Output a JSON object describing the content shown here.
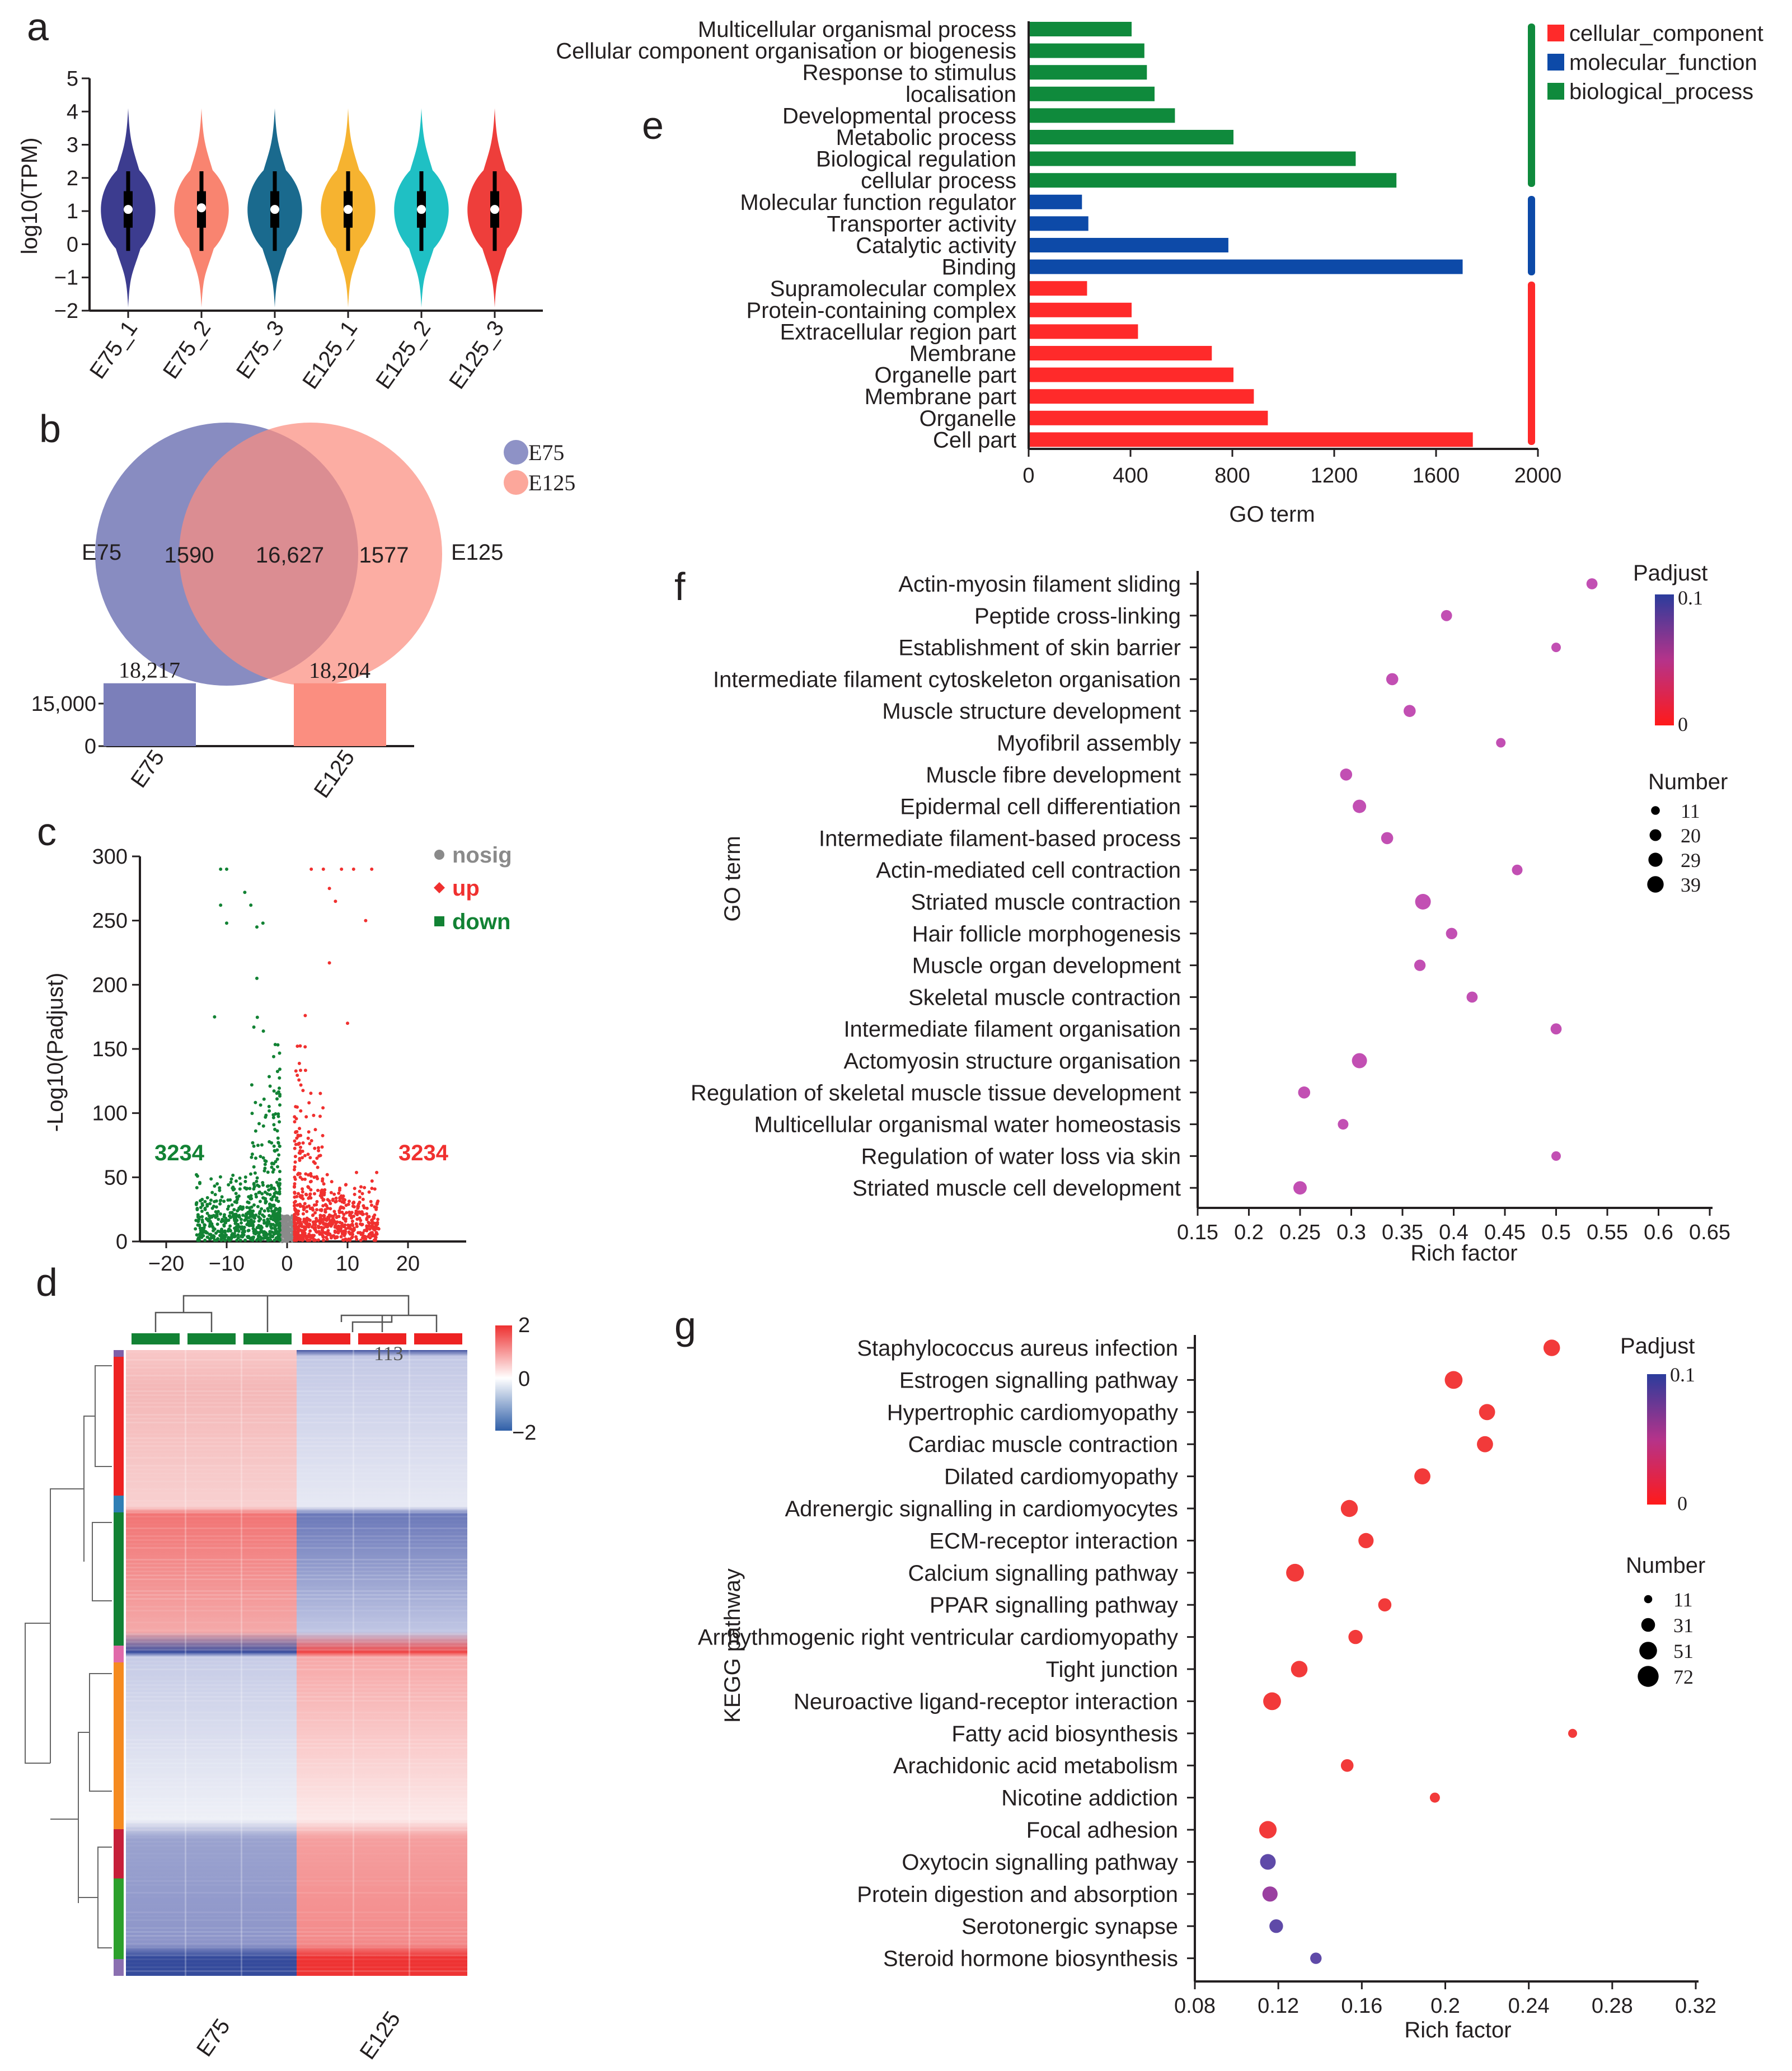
{
  "panels": {
    "a": "a",
    "b": "b",
    "c": "c",
    "d": "d",
    "e": "e",
    "f": "f",
    "g": "g"
  },
  "colors": {
    "component": "#ff2a2a",
    "function": "#0d4aa8",
    "process": "#0f8a3c",
    "up": "#f0302f",
    "down": "#128234",
    "nosig": "#8a8a8a",
    "e75": "#7b7fba",
    "e125": "#fb8e80"
  },
  "chart_data": [
    {
      "id": "a",
      "type": "violin",
      "ylabel": "log10(TPM)",
      "ylim": [
        -2,
        5
      ],
      "yticks": [
        "5",
        "4",
        "3",
        "2",
        "1",
        "0",
        "−1",
        "−2"
      ],
      "categories": [
        "E75_1",
        "E75_2",
        "E75_3",
        "E125_1",
        "E125_2",
        "E125_3"
      ],
      "colors": [
        "#3c3c8f",
        "#f98470",
        "#1a6a8e",
        "#f6b330",
        "#1fc0c4",
        "#ee3e3b"
      ],
      "medians": [
        1.05,
        1.1,
        1.05,
        1.05,
        1.05,
        1.05
      ]
    },
    {
      "id": "b",
      "type": "venn",
      "sets": [
        "E75",
        "E125"
      ],
      "legend": [
        "E75",
        "E125"
      ],
      "only_left": "1590",
      "overlap": "16,627",
      "only_right": "1577",
      "bar_values": [
        18217,
        18204
      ],
      "bar_labels": [
        "18,217",
        "18,204"
      ],
      "bar_categories": [
        "E75",
        "E125"
      ],
      "bar_ytick": "15,000",
      "bar_zero": "0"
    },
    {
      "id": "c",
      "type": "scatter",
      "ylabel": "-Log10(Padjust)",
      "xlim": [
        -25,
        30
      ],
      "ylim": [
        0,
        300
      ],
      "xticks": [
        "−20",
        "−10",
        "0",
        "10",
        "20"
      ],
      "yticks": [
        "300",
        "250",
        "200",
        "150",
        "100",
        "50",
        "0"
      ],
      "legend": [
        "nosig",
        "up",
        "down"
      ],
      "down_count": "3234",
      "up_count": "3234"
    },
    {
      "id": "d",
      "type": "heatmap",
      "scale_labels": [
        "2",
        "0",
        "−2"
      ],
      "note": "113",
      "groups": [
        "E75",
        "E125"
      ]
    },
    {
      "id": "e",
      "type": "bar",
      "orientation": "horizontal",
      "xlabel": "GO term",
      "xlim": [
        0,
        2000
      ],
      "xticks": [
        "0",
        "400",
        "800",
        "1200",
        "1600",
        "2000"
      ],
      "legend": [
        "cellular_component",
        "molecular_function",
        "biological_process"
      ],
      "categories": [
        "Multicellular organismal process",
        "Cellular component organisation or biogenesis",
        "Response to stimulus",
        "localisation",
        "Developmental process",
        "Metabolic process",
        "Biological regulation",
        "cellular process",
        "Molecular function regulator",
        "Transporter activity",
        "Catalytic activity",
        "Binding",
        "Supramolecular complex",
        "Protein-containing complex",
        "Extracellular region part",
        "Membrane",
        "Organelle part",
        "Membrane part",
        "Organelle",
        "Cell part"
      ],
      "values": [
        400,
        450,
        460,
        490,
        570,
        800,
        1280,
        1440,
        205,
        230,
        780,
        1700,
        225,
        400,
        425,
        715,
        800,
        880,
        935,
        1740
      ],
      "groups": [
        "biological_process",
        "biological_process",
        "biological_process",
        "biological_process",
        "biological_process",
        "biological_process",
        "biological_process",
        "biological_process",
        "molecular_function",
        "molecular_function",
        "molecular_function",
        "molecular_function",
        "cellular_component",
        "cellular_component",
        "cellular_component",
        "cellular_component",
        "cellular_component",
        "cellular_component",
        "cellular_component",
        "cellular_component"
      ]
    },
    {
      "id": "f",
      "type": "scatter",
      "xlabel": "Rich factor",
      "ylabel": "GO term",
      "xlim": [
        0.15,
        0.65
      ],
      "xticks": [
        "0.15",
        "0.2",
        "0.25",
        "0.3",
        "0.35",
        "0.4",
        "0.45",
        "0.5",
        "0.55",
        "0.6",
        "0.65"
      ],
      "color_title": "Padjust",
      "color_labels": [
        "0.1",
        "0"
      ],
      "size_title": "Number",
      "size_labels": [
        "11",
        "20",
        "29",
        "39"
      ],
      "terms": [
        "Actin-myosin filament sliding",
        "Peptide cross-linking",
        "Establishment of skin barrier",
        "Intermediate filament cytoskeleton organisation",
        "Muscle structure development",
        "Myofibril assembly",
        "Muscle fibre development",
        "Epidermal cell differentiation",
        "Intermediate filament-based process",
        "Actin-mediated cell contraction",
        "Striated muscle contraction",
        "Hair follicle morphogenesis",
        "Muscle organ development",
        "Skeletal muscle contraction",
        "Intermediate filament organisation",
        "Actomyosin structure organisation",
        "Regulation of skeletal muscle tissue development",
        "Multicellular organismal water homeostasis",
        "Regulation of water loss via skin",
        "Striated muscle cell development"
      ],
      "x": [
        0.535,
        0.393,
        0.5,
        0.34,
        0.357,
        0.446,
        0.295,
        0.308,
        0.335,
        0.462,
        0.37,
        0.398,
        0.367,
        0.418,
        0.5,
        0.308,
        0.254,
        0.292,
        0.5,
        0.25
      ],
      "number": [
        15,
        15,
        11,
        18,
        18,
        11,
        18,
        22,
        18,
        14,
        30,
        16,
        16,
        15,
        15,
        28,
        18,
        14,
        11,
        22
      ]
    },
    {
      "id": "g",
      "type": "scatter",
      "xlabel": "Rich factor",
      "ylabel": "KEGG pathway",
      "xlim": [
        0.08,
        0.32
      ],
      "xticks": [
        "0.08",
        "0.12",
        "0.16",
        "0.2",
        "0.24",
        "0.28",
        "0.32"
      ],
      "color_title": "Padjust",
      "color_labels": [
        "0.1",
        "0"
      ],
      "size_title": "Number",
      "size_labels": [
        "11",
        "31",
        "51",
        "72"
      ],
      "terms": [
        "Staphylococcus aureus infection",
        "Estrogen signalling pathway",
        "Hypertrophic cardiomyopathy",
        "Cardiac muscle contraction",
        "Dilated cardiomyopathy",
        "Adrenergic signalling in cardiomyocytes",
        "ECM-receptor interaction",
        "Calcium signalling pathway",
        "PPAR signalling pathway",
        "Arrhythmogenic right ventricular cardiomyopathy",
        "Tight junction",
        "Neuroactive ligand-receptor interaction",
        "Fatty acid biosynthesis",
        "Arachidonic acid metabolism",
        "Nicotine addiction",
        "Focal adhesion",
        "Oxytocin signalling pathway",
        "Protein digestion and absorption",
        "Serotonergic synapse",
        "Steroid hormone biosynthesis"
      ],
      "x": [
        0.251,
        0.204,
        0.22,
        0.219,
        0.189,
        0.154,
        0.162,
        0.128,
        0.171,
        0.157,
        0.13,
        0.117,
        0.261,
        0.153,
        0.195,
        0.115,
        0.115,
        0.116,
        0.119,
        0.138
      ],
      "number": [
        38,
        44,
        36,
        36,
        36,
        40,
        32,
        44,
        24,
        28,
        38,
        44,
        11,
        22,
        14,
        42,
        34,
        32,
        26,
        18
      ],
      "padj": [
        0.0,
        0.0,
        0.0,
        0.0,
        0.0,
        0.0,
        0.0,
        0.0,
        0.0,
        0.0,
        0.0,
        0.0,
        0.0,
        0.0,
        0.0,
        0.0,
        0.08,
        0.07,
        0.085,
        0.09
      ]
    }
  ]
}
